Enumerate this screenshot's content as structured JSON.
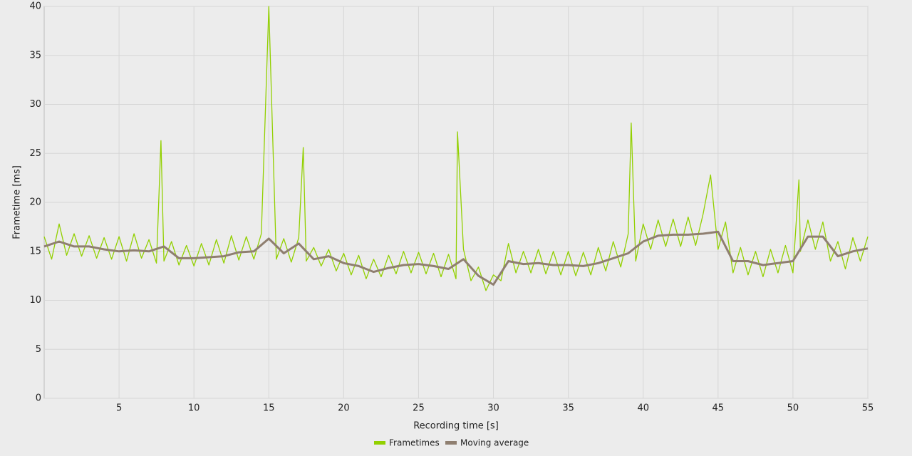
{
  "chart_data": {
    "type": "line",
    "x_label": "Recording time [s]",
    "y_label": "Frametime [ms]",
    "xlim": [
      0,
      55
    ],
    "xticks": [
      5,
      10,
      15,
      20,
      25,
      30,
      35,
      40,
      45,
      50,
      55
    ],
    "ylim": [
      0,
      40
    ],
    "yticks": [
      0,
      5,
      10,
      15,
      20,
      25,
      30,
      35,
      40
    ],
    "grid": true,
    "legend": "bottom",
    "series": [
      {
        "name": "Frametimes",
        "color": "#92d000",
        "x": [
          0,
          0.5,
          1,
          1.5,
          2,
          2.5,
          3,
          3.5,
          4,
          4.5,
          5,
          5.5,
          6,
          6.5,
          7,
          7.5,
          7.8,
          8,
          8.5,
          9,
          9.5,
          10,
          10.5,
          11,
          11.5,
          12,
          12.5,
          13,
          13.5,
          14,
          14.5,
          15,
          15.5,
          16,
          16.5,
          17,
          17.3,
          17.5,
          18,
          18.5,
          19,
          19.5,
          20,
          20.5,
          21,
          21.5,
          22,
          22.5,
          23,
          23.5,
          24,
          24.5,
          25,
          25.5,
          26,
          26.5,
          27,
          27.5,
          27.6,
          28,
          28.5,
          29,
          29.5,
          30,
          30.5,
          31,
          31.5,
          32,
          32.5,
          33,
          33.5,
          34,
          34.5,
          35,
          35.5,
          36,
          36.5,
          37,
          37.5,
          38,
          38.5,
          39,
          39.2,
          39.5,
          40,
          40.5,
          41,
          41.5,
          42,
          42.5,
          43,
          43.5,
          44,
          44.5,
          45,
          45.5,
          46,
          46.5,
          47,
          47.5,
          48,
          48.5,
          49,
          49.5,
          50,
          50.4,
          50.5,
          51,
          51.5,
          52,
          52.5,
          53,
          53.5,
          54,
          54.5,
          55
        ],
        "values": [
          16.5,
          14.2,
          17.8,
          14.6,
          16.8,
          14.5,
          16.6,
          14.3,
          16.4,
          14.2,
          16.5,
          14.0,
          16.8,
          14.3,
          16.2,
          13.8,
          26.3,
          14.0,
          16.0,
          13.6,
          15.6,
          13.5,
          15.8,
          13.6,
          16.2,
          13.8,
          16.6,
          14.1,
          16.5,
          14.2,
          16.8,
          40,
          14.2,
          16.3,
          13.9,
          16.4,
          25.6,
          14.0,
          15.4,
          13.5,
          15.2,
          13.0,
          14.8,
          12.6,
          14.6,
          12.2,
          14.2,
          12.4,
          14.6,
          12.7,
          15.0,
          12.8,
          14.9,
          12.7,
          14.8,
          12.4,
          14.7,
          12.2,
          27.2,
          15.2,
          12.0,
          13.4,
          11.0,
          12.6,
          12.0,
          15.8,
          12.8,
          15.0,
          12.8,
          15.2,
          12.7,
          15.0,
          12.6,
          15.0,
          12.5,
          14.9,
          12.6,
          15.4,
          13.0,
          16.0,
          13.4,
          16.8,
          28.1,
          14.0,
          17.8,
          15.2,
          18.2,
          15.5,
          18.3,
          15.5,
          18.5,
          15.6,
          18.8,
          22.8,
          15.2,
          18.0,
          12.8,
          15.4,
          12.6,
          15.0,
          12.4,
          15.2,
          12.8,
          15.6,
          12.8,
          22.3,
          15.0,
          18.2,
          15.2,
          18.0,
          14.0,
          16.0,
          13.2,
          16.4,
          14.0,
          16.5
        ]
      },
      {
        "name": "Moving average",
        "color": "#8f7f70",
        "x": [
          0,
          1,
          2,
          3,
          4,
          5,
          6,
          7,
          8,
          9,
          10,
          11,
          12,
          13,
          14,
          15,
          16,
          17,
          18,
          19,
          20,
          21,
          22,
          23,
          24,
          25,
          26,
          27,
          28,
          29,
          30,
          31,
          32,
          33,
          34,
          35,
          36,
          37,
          38,
          39,
          40,
          41,
          42,
          43,
          44,
          45,
          46,
          47,
          48,
          49,
          50,
          51,
          52,
          53,
          54,
          55
        ],
        "values": [
          15.5,
          16.0,
          15.5,
          15.5,
          15.2,
          15.0,
          15.1,
          15.0,
          15.5,
          14.3,
          14.3,
          14.4,
          14.5,
          14.9,
          15.0,
          16.3,
          14.8,
          15.8,
          14.2,
          14.5,
          13.8,
          13.5,
          12.9,
          13.3,
          13.6,
          13.7,
          13.5,
          13.2,
          14.2,
          12.5,
          11.6,
          14.0,
          13.7,
          13.8,
          13.6,
          13.6,
          13.5,
          13.8,
          14.3,
          14.8,
          16.0,
          16.6,
          16.7,
          16.7,
          16.8,
          17.0,
          14.0,
          14.0,
          13.6,
          13.8,
          14.0,
          16.5,
          16.5,
          14.5,
          15.0,
          15.3
        ]
      }
    ]
  }
}
